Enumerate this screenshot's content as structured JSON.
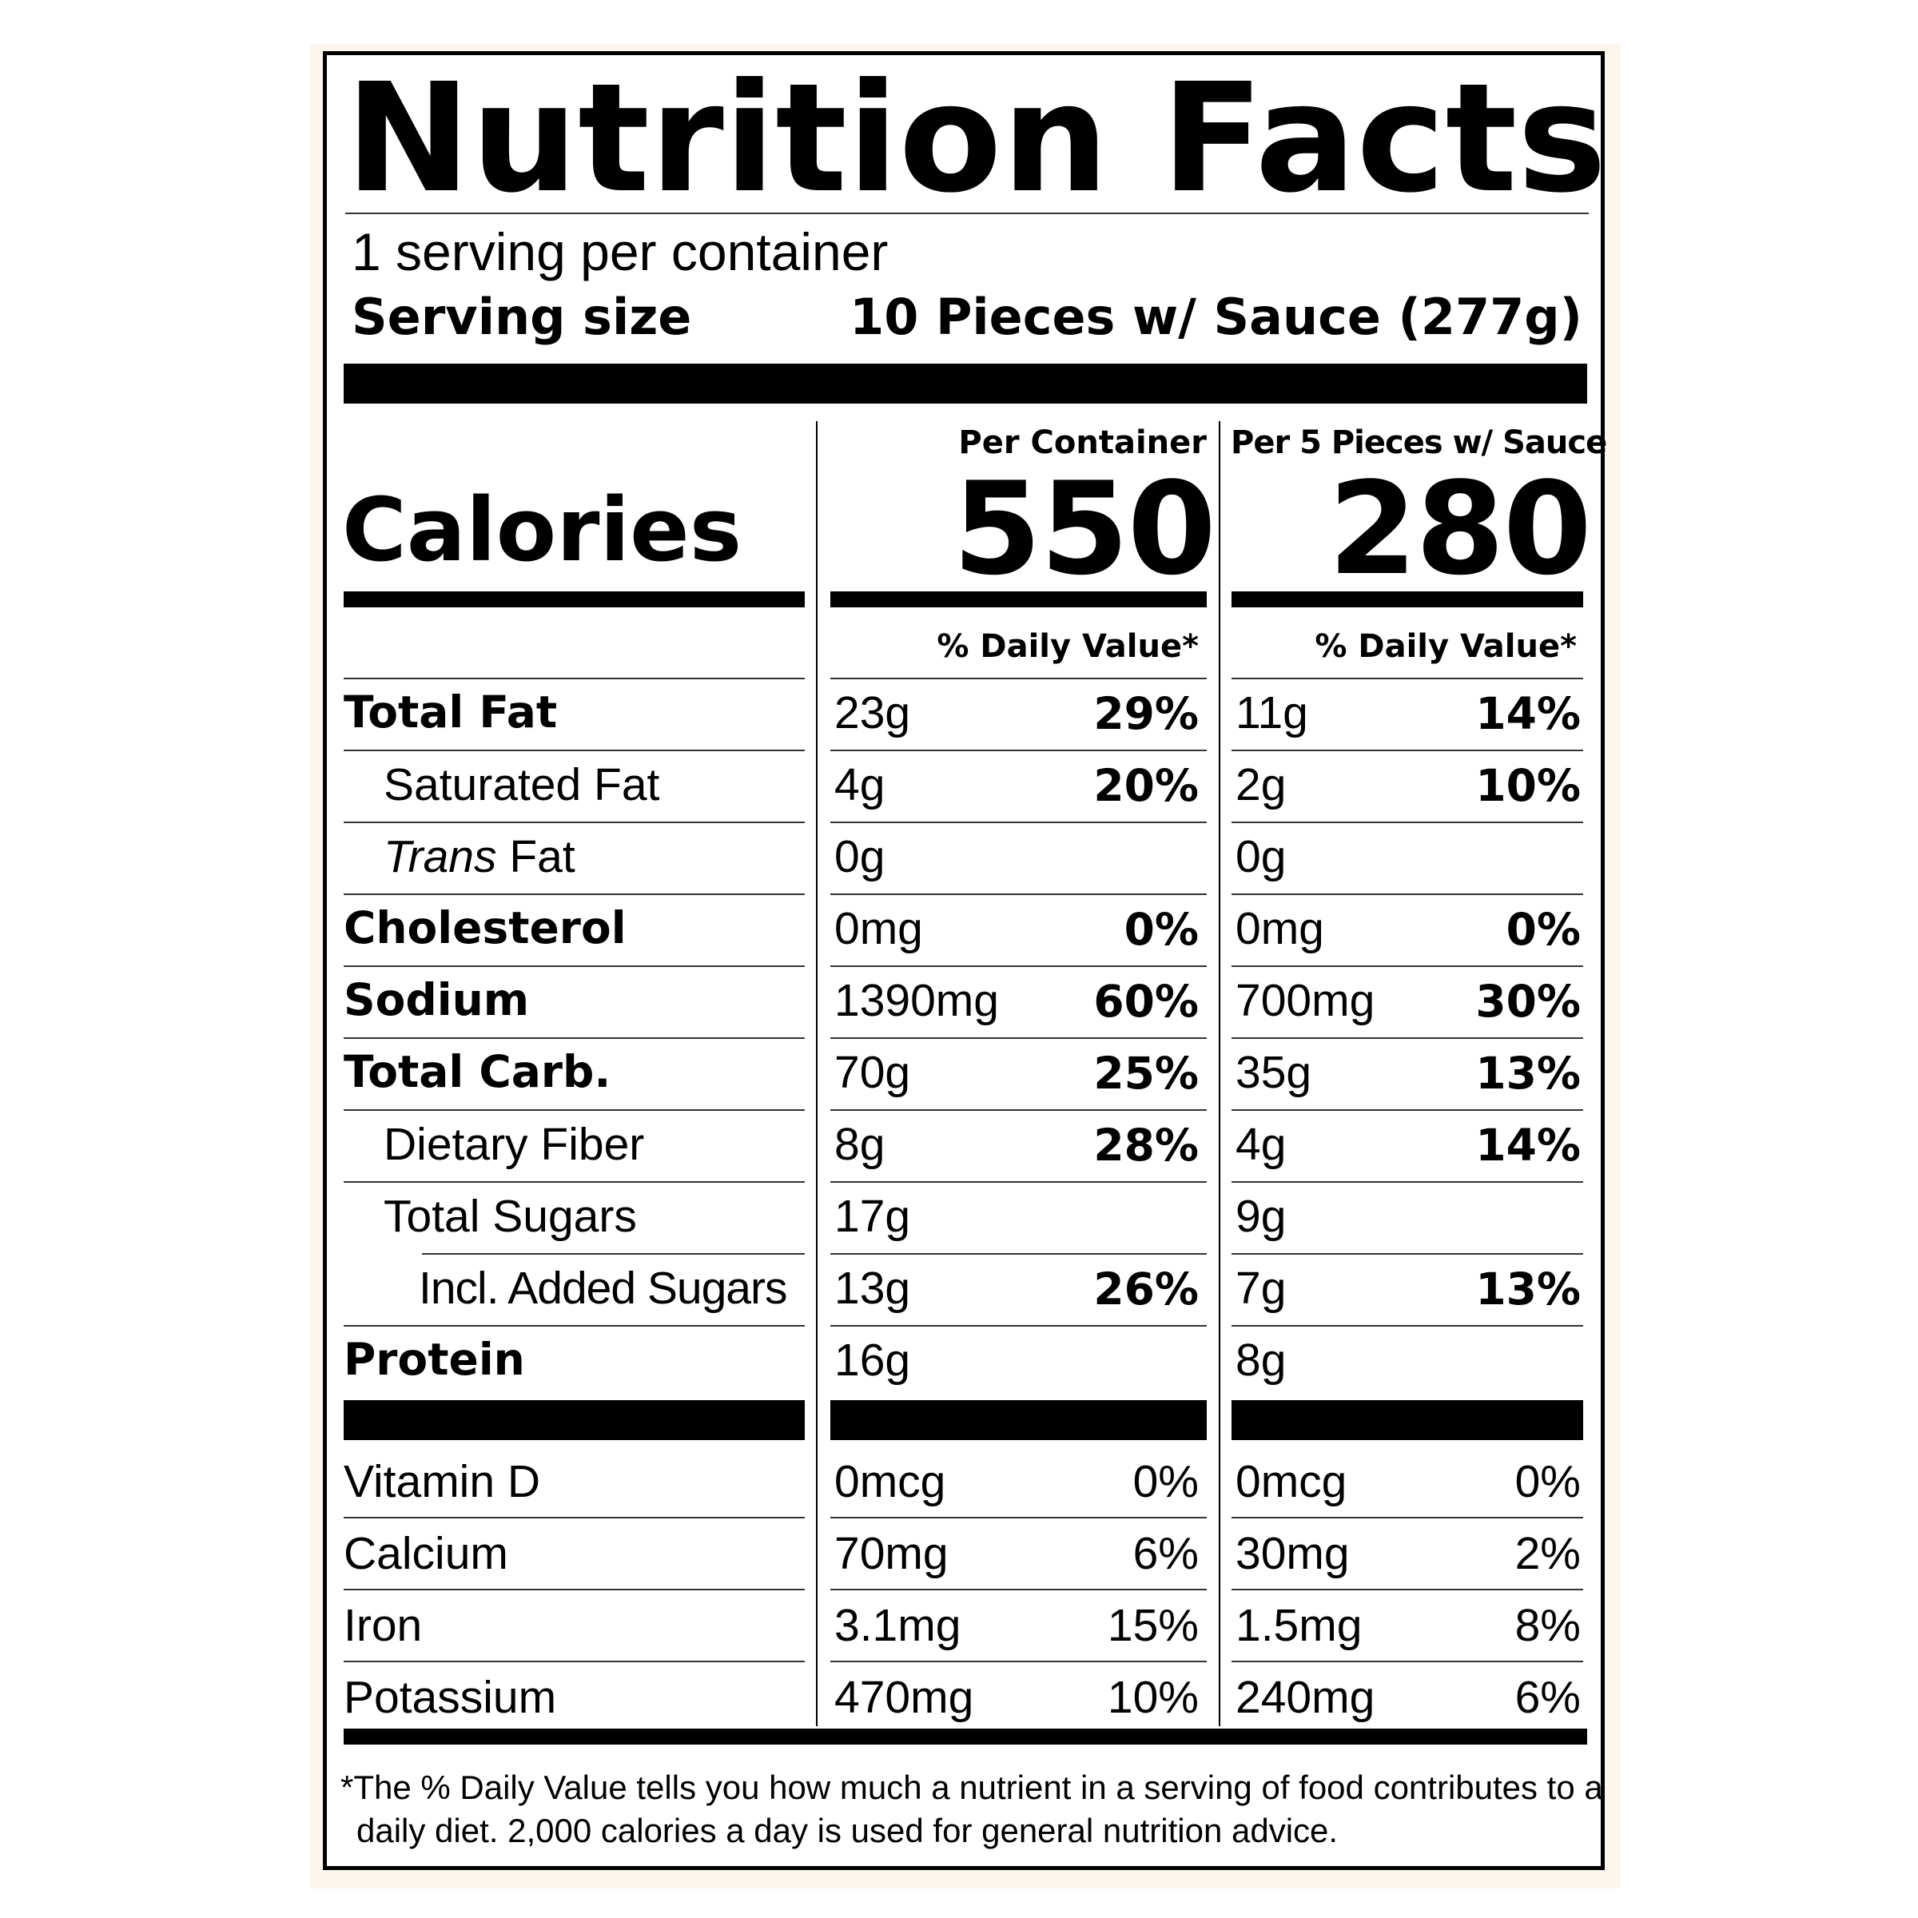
{
  "title": "Nutrition Facts",
  "servings_per_container": "1 serving per container",
  "serving_size_label": "Serving size",
  "serving_size_value": "10 Pieces w/ Sauce (277g)",
  "calories_label": "Calories",
  "columns": [
    {
      "header": "Per Container",
      "calories": "550",
      "dv_header": "% Daily Value*"
    },
    {
      "header": "Per 5 Pieces w/ Sauce",
      "calories": "280",
      "dv_header": "% Daily Value*"
    }
  ],
  "nutrients": [
    {
      "name": "Total Fat",
      "style": "bold",
      "c1_amount": "23g",
      "c1_dv": "29%",
      "c2_amount": "11g",
      "c2_dv": "14%"
    },
    {
      "name": "Saturated Fat",
      "style": "indent",
      "c1_amount": "4g",
      "c1_dv": "20%",
      "c2_amount": "2g",
      "c2_dv": "10%"
    },
    {
      "name_italic": "Trans",
      "name_rest": " Fat",
      "style": "indent-italic",
      "c1_amount": "0g",
      "c1_dv": "",
      "c2_amount": "0g",
      "c2_dv": ""
    },
    {
      "name": "Cholesterol",
      "style": "bold",
      "c1_amount": "0mg",
      "c1_dv": "0%",
      "c2_amount": "0mg",
      "c2_dv": "0%"
    },
    {
      "name": "Sodium",
      "style": "bold",
      "c1_amount": "1390mg",
      "c1_dv": "60%",
      "c2_amount": "700mg",
      "c2_dv": "30%"
    },
    {
      "name": "Total Carb.",
      "style": "bold",
      "c1_amount": "70g",
      "c1_dv": "25%",
      "c2_amount": "35g",
      "c2_dv": "13%"
    },
    {
      "name": "Dietary Fiber",
      "style": "indent",
      "c1_amount": "8g",
      "c1_dv": "28%",
      "c2_amount": "4g",
      "c2_dv": "14%"
    },
    {
      "name": "Total Sugars",
      "style": "indent",
      "c1_amount": "17g",
      "c1_dv": "",
      "c2_amount": "9g",
      "c2_dv": ""
    },
    {
      "name": "Incl. Added Sugars",
      "style": "indent2",
      "c1_amount": "13g",
      "c1_dv": "26%",
      "c2_amount": "7g",
      "c2_dv": "13%"
    },
    {
      "name": "Protein",
      "style": "bold",
      "c1_amount": "16g",
      "c1_dv": "",
      "c2_amount": "8g",
      "c2_dv": ""
    }
  ],
  "vitamins": [
    {
      "name": "Vitamin D",
      "c1_amount": "0mcg",
      "c1_dv": "0%",
      "c2_amount": "0mcg",
      "c2_dv": "0%"
    },
    {
      "name": "Calcium",
      "c1_amount": "70mg",
      "c1_dv": "6%",
      "c2_amount": "30mg",
      "c2_dv": "2%"
    },
    {
      "name": "Iron",
      "c1_amount": "3.1mg",
      "c1_dv": "15%",
      "c2_amount": "1.5mg",
      "c2_dv": "8%"
    },
    {
      "name": "Potassium",
      "c1_amount": "470mg",
      "c1_dv": "10%",
      "c2_amount": "240mg",
      "c2_dv": "6%"
    }
  ],
  "footnote_line1": "*The % Daily Value tells you how much a nutrient in a serving of food contributes to a",
  "footnote_line2": "daily diet. 2,000 calories a day is used for general  nutrition advice."
}
